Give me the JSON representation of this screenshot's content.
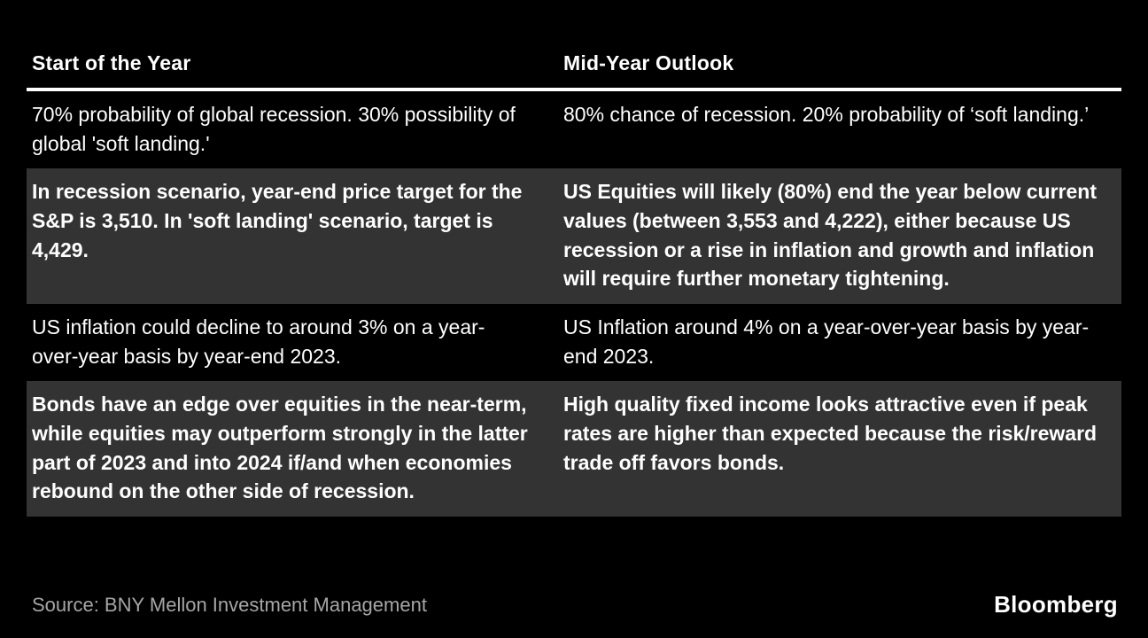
{
  "chart_data": {
    "type": "table",
    "title": "",
    "columns": [
      "Start of the Year",
      "Mid-Year Outlook"
    ],
    "rows": [
      {
        "highlighted": false,
        "cells": [
          "70% probability of global recession. 30% possibility of global 'soft landing.'",
          "80% chance of recession. 20% probability of ‘soft landing.’"
        ]
      },
      {
        "highlighted": true,
        "cells": [
          "In recession scenario, year-end price target for the S&P is 3,510. In 'soft landing' scenario, target is 4,429.",
          "US Equities will likely (80%) end the year below current values (between 3,553 and 4,222), either because US recession or a rise in inflation and growth and inflation will require further monetary tightening."
        ]
      },
      {
        "highlighted": false,
        "cells": [
          "US inflation could decline to around 3% on a year-over-year basis by year-end 2023.",
          "US Inflation around 4% on a year-over-year basis by year-end 2023."
        ]
      },
      {
        "highlighted": true,
        "cells": [
          "Bonds have an edge over equities in the near-term, while equities may outperform strongly in the latter part of 2023 and into 2024 if/and when economies rebound on the other side of recession.",
          "High quality fixed income looks attractive even if peak rates are higher than expected because the risk/reward trade off favors bonds."
        ]
      }
    ]
  },
  "footer": {
    "source": "Source: BNY Mellon Investment Management",
    "brand": "Bloomberg"
  },
  "colors": {
    "background": "#000000",
    "row_highlight_background": "#333333",
    "text": "#ffffff",
    "source_text": "#a6a6a6",
    "header_rule": "#ffffff"
  }
}
